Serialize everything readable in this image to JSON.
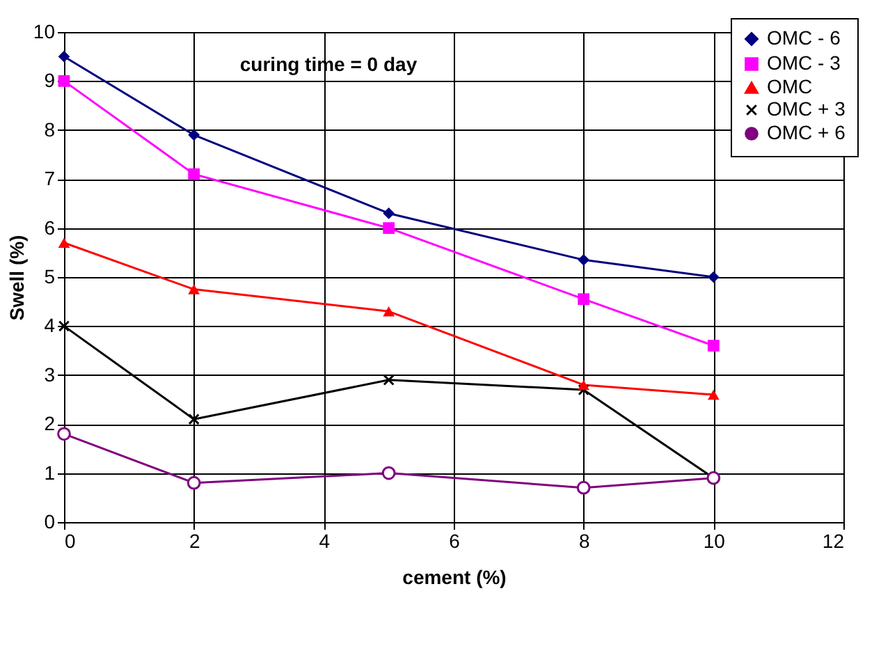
{
  "chart_data": {
    "type": "line",
    "xlabel": "cement (%)",
    "ylabel": "Swell (%)",
    "x": [
      0,
      2,
      5,
      8,
      10
    ],
    "series": [
      {
        "name": "OMC - 6",
        "color": "#000080",
        "marker": "diamond",
        "values": [
          9.5,
          7.9,
          6.3,
          5.35,
          5.0
        ]
      },
      {
        "name": "OMC - 3",
        "color": "#ff00ff",
        "marker": "square",
        "values": [
          9.0,
          7.1,
          6.0,
          4.55,
          3.6
        ]
      },
      {
        "name": "OMC",
        "color": "#ff0000",
        "marker": "triangle",
        "values": [
          5.7,
          4.75,
          4.3,
          2.8,
          2.6
        ]
      },
      {
        "name": "OMC + 3",
        "color": "#000000",
        "marker": "cross",
        "values": [
          4.0,
          2.1,
          2.9,
          2.7,
          0.9
        ]
      },
      {
        "name": "OMC + 6",
        "color": "#800080",
        "marker": "circle",
        "values": [
          1.8,
          0.8,
          1.0,
          0.7,
          0.9
        ]
      }
    ],
    "xlim": [
      0,
      12
    ],
    "xticks": [
      0,
      2,
      4,
      6,
      8,
      10,
      12
    ],
    "ylim": [
      0,
      10
    ],
    "yticks": [
      0,
      1,
      2,
      3,
      4,
      5,
      6,
      7,
      8,
      9,
      10
    ],
    "annotations": [
      "curing time = 0 day"
    ],
    "grid": true,
    "legend": "top right",
    "line_style": "solid"
  }
}
